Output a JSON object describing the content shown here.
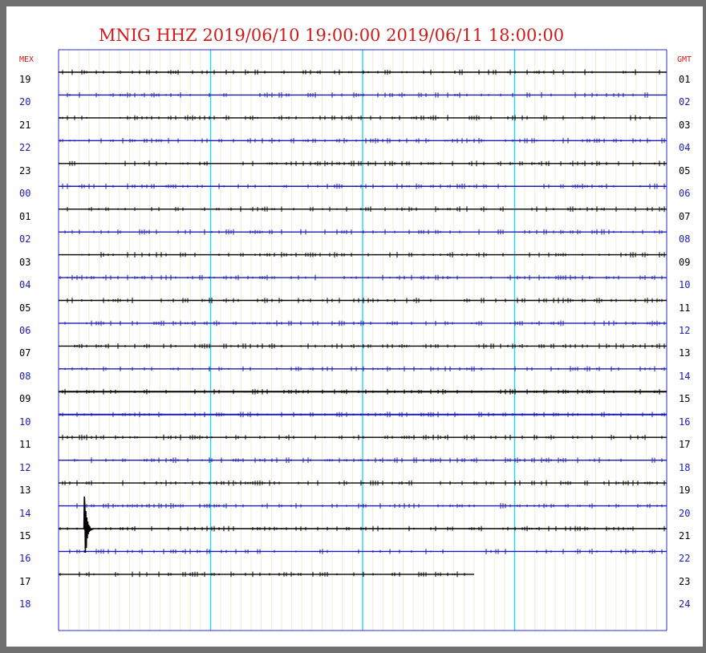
{
  "title": "MNIG HHZ 2019/06/10 19:00:00 2019/06/11 18:00:00",
  "left_axis_header": "MEX",
  "right_axis_header": "GMT",
  "colors": {
    "title": "#d11b1b",
    "trace_black": "#000000",
    "trace_blue": "#1a1ab8",
    "frame": "#2b2bd0",
    "minute_grid": "#f0ecd2",
    "quarter_grid": "#22d6e6",
    "background": "#6f6f6f"
  },
  "chart_data": {
    "type": "line",
    "title": "MNIG HHZ 2019/06/10 19:00:00 2019/06/11 18:00:00",
    "left_labels": [
      "19",
      "20",
      "21",
      "22",
      "23",
      "00",
      "01",
      "02",
      "03",
      "04",
      "05",
      "06",
      "07",
      "08",
      "09",
      "10",
      "11",
      "12",
      "13",
      "14",
      "15",
      "16",
      "17",
      "18"
    ],
    "right_labels": [
      "01",
      "02",
      "03",
      "04",
      "05",
      "06",
      "07",
      "08",
      "09",
      "10",
      "11",
      "12",
      "13",
      "14",
      "15",
      "16",
      "17",
      "18",
      "19",
      "20",
      "21",
      "22",
      "23",
      "24"
    ],
    "rows": 24,
    "minutes_per_row": 60,
    "last_row_end_minute": 41,
    "events": [
      {
        "row_label": "15",
        "minute": 2.5,
        "description": "earthquake signal"
      }
    ]
  }
}
